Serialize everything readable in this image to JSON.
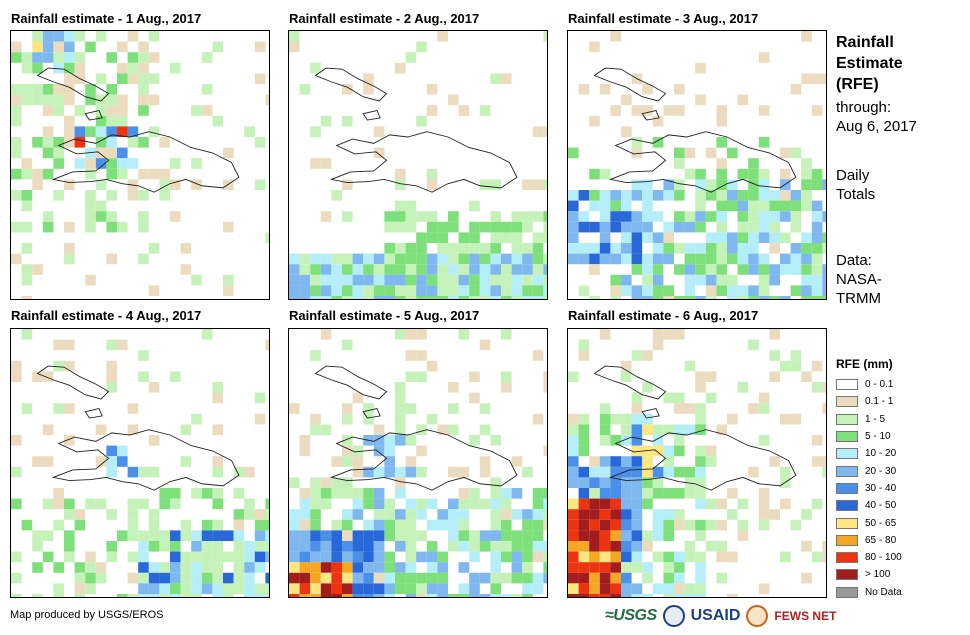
{
  "panels": [
    {
      "title": "Rainfall estimate - 1 Aug., 2017"
    },
    {
      "title": "Rainfall estimate - 2 Aug., 2017"
    },
    {
      "title": "Rainfall estimate - 3 Aug., 2017"
    },
    {
      "title": "Rainfall estimate - 4 Aug., 2017"
    },
    {
      "title": "Rainfall estimate - 5 Aug., 2017"
    },
    {
      "title": "Rainfall estimate - 6 Aug., 2017"
    }
  ],
  "side": {
    "title_line1": "Rainfall",
    "title_line2": "Estimate",
    "title_line3": "(RFE)",
    "through_label": "through:",
    "through_date": "Aug 6, 2017",
    "daily_line1": "Daily",
    "daily_line2": "Totals",
    "data_line1": "Data:",
    "data_line2": "NASA-",
    "data_line3": "TRMM"
  },
  "legend": {
    "title": "RFE (mm)",
    "classes": [
      {
        "label": "0 - 0.1",
        "color": "#ffffff"
      },
      {
        "label": "0.1 - 1",
        "color": "#ecdcbf"
      },
      {
        "label": "1 - 5",
        "color": "#c5f2b9"
      },
      {
        "label": "5 - 10",
        "color": "#7ee07a"
      },
      {
        "label": "10 - 20",
        "color": "#b4eef8"
      },
      {
        "label": "20 - 30",
        "color": "#7fb7ef"
      },
      {
        "label": "30 - 40",
        "color": "#4a8fe8"
      },
      {
        "label": "40 - 50",
        "color": "#2868d8"
      },
      {
        "label": "50 - 65",
        "color": "#ffe680"
      },
      {
        "label": "65 - 80",
        "color": "#f5a623"
      },
      {
        "label": "80 - 100",
        "color": "#ee3311"
      },
      {
        "label": "> 100",
        "color": "#a41d1d"
      },
      {
        "label": "No Data",
        "color": "#999999"
      }
    ]
  },
  "credit": "Map produced by USGS/EROS",
  "logos": {
    "usgs": "≈USGS",
    "usaid": "USAID",
    "fews": "FEWS NET"
  }
}
